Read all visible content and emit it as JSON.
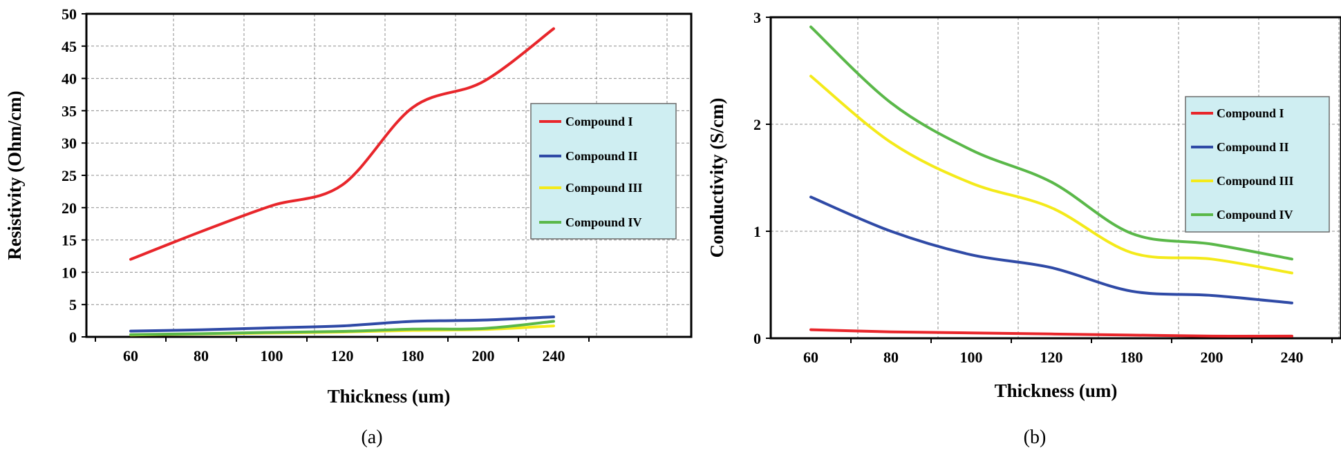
{
  "chart_data": [
    {
      "type": "line",
      "caption": "(a)",
      "categories": [
        "60",
        "80",
        "100",
        "120",
        "180",
        "200",
        "240"
      ],
      "xlabel": "Thickness (um)",
      "ylabel": "Resistivity (Ohm/cm)",
      "ylim": [
        0,
        50
      ],
      "yticks": [
        0,
        5,
        10,
        15,
        20,
        25,
        30,
        35,
        40,
        45,
        50
      ],
      "grid": true,
      "legend_position": "right",
      "series": [
        {
          "name": "Compound I",
          "color": "#e8262b",
          "values": [
            12,
            16.3,
            20.3,
            23.5,
            35.5,
            39.5,
            47.7
          ]
        },
        {
          "name": "Compound II",
          "color": "#2f4aa6",
          "values": [
            0.9,
            1.1,
            1.4,
            1.7,
            2.4,
            2.6,
            3.1
          ]
        },
        {
          "name": "Compound III",
          "color": "#f4ea1a",
          "values": [
            0.3,
            0.45,
            0.6,
            0.75,
            1.0,
            1.15,
            1.7
          ]
        },
        {
          "name": "Compound IV",
          "color": "#5ab849",
          "values": [
            0.35,
            0.5,
            0.7,
            0.85,
            1.2,
            1.3,
            2.4
          ]
        }
      ]
    },
    {
      "type": "line",
      "caption": "(b)",
      "categories": [
        "60",
        "80",
        "100",
        "120",
        "180",
        "200",
        "240"
      ],
      "xlabel": "Thickness (um)",
      "ylabel": "Conductivity (S/cm)",
      "ylim": [
        0,
        3
      ],
      "yticks": [
        0,
        1,
        2,
        3
      ],
      "grid": true,
      "legend_position": "right",
      "series": [
        {
          "name": "Compound I",
          "color": "#e8262b",
          "values": [
            0.08,
            0.06,
            0.05,
            0.04,
            0.03,
            0.02,
            0.02
          ]
        },
        {
          "name": "Compound II",
          "color": "#2f4aa6",
          "values": [
            1.32,
            1.0,
            0.78,
            0.66,
            0.44,
            0.4,
            0.33
          ]
        },
        {
          "name": "Compound III",
          "color": "#f4ea1a",
          "values": [
            2.45,
            1.83,
            1.45,
            1.22,
            0.8,
            0.74,
            0.61
          ]
        },
        {
          "name": "Compound IV",
          "color": "#5ab849",
          "values": [
            2.91,
            2.2,
            1.76,
            1.46,
            0.98,
            0.88,
            0.74
          ]
        }
      ]
    }
  ]
}
